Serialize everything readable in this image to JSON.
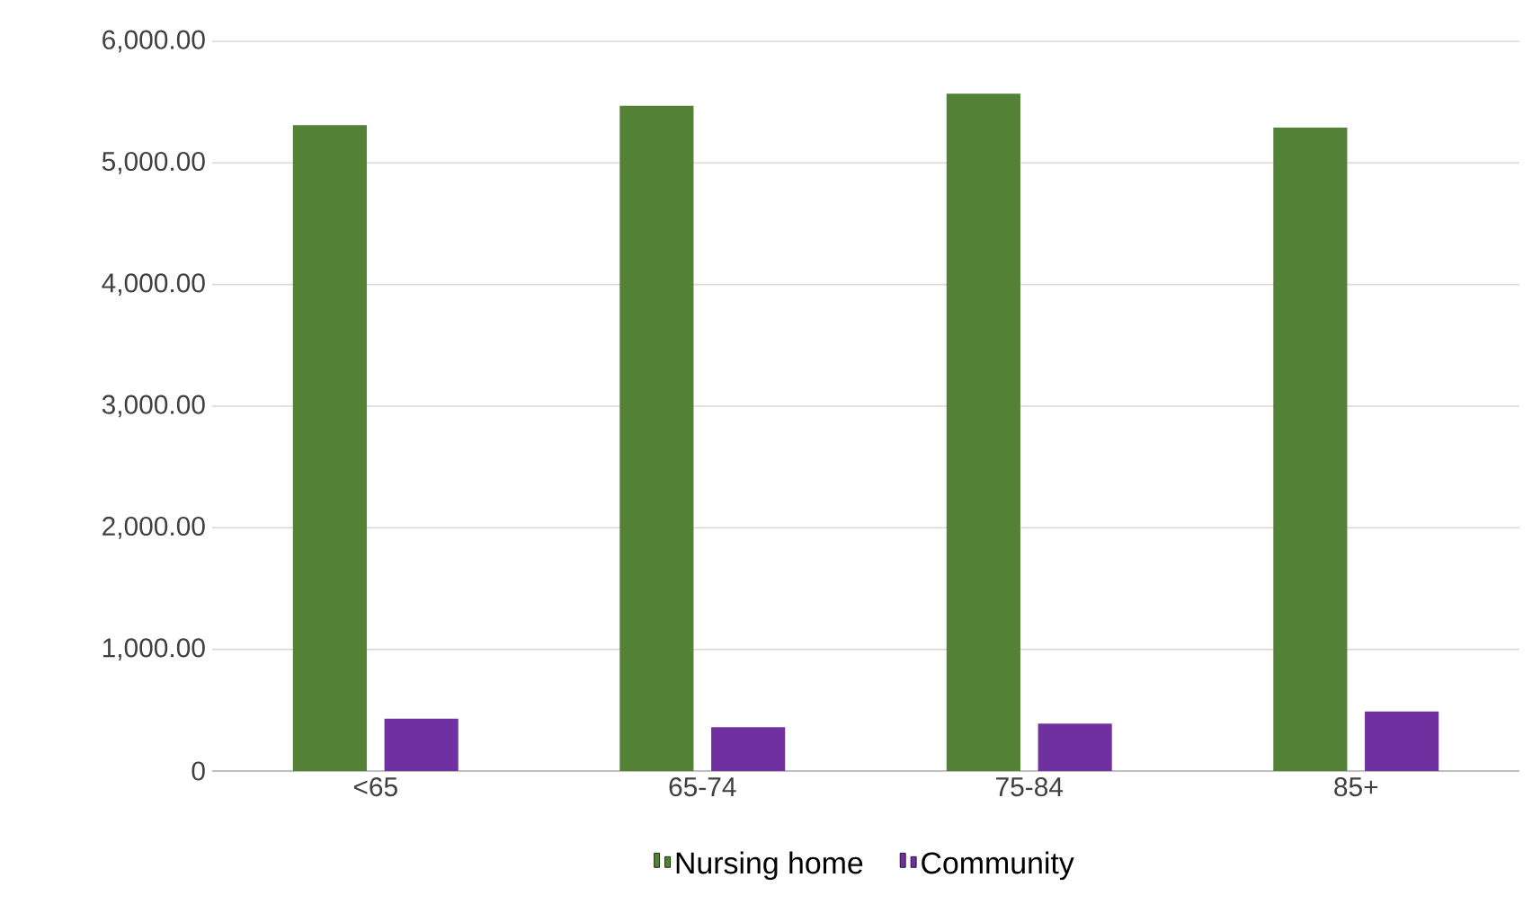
{
  "chart_data": {
    "type": "bar",
    "categories": [
      "<65",
      "65-74",
      "75-84",
      "85+"
    ],
    "series": [
      {
        "name": "Nursing home",
        "color": "#538135",
        "values": [
          5310,
          5470,
          5570,
          5290
        ]
      },
      {
        "name": "Community",
        "color": "#7030a0",
        "values": [
          430,
          360,
          390,
          490
        ]
      }
    ],
    "ylim": [
      0,
      6000
    ],
    "yticks": [
      0,
      {
        "value": 1000,
        "label": "1,000.00"
      },
      {
        "value": 2000,
        "label": "2,000.00"
      },
      {
        "value": 3000,
        "label": "3,000.00"
      },
      {
        "value": 4000,
        "label": "4,000.00"
      },
      {
        "value": 5000,
        "label": "5,000.00"
      },
      {
        "value": 6000,
        "label": "6,000.00"
      }
    ],
    "grid": "y",
    "legend": "bottom"
  }
}
